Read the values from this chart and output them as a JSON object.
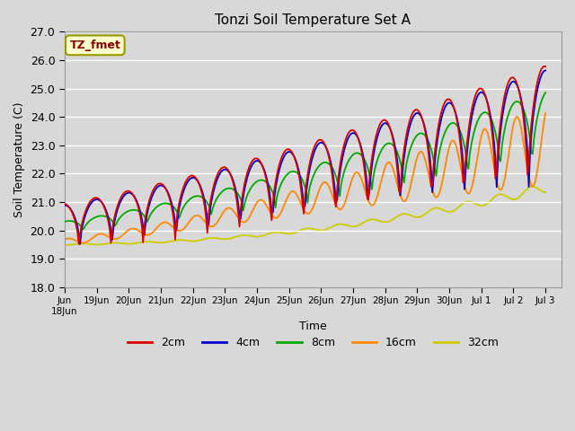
{
  "title": "Tonzi Soil Temperature Set A",
  "xlabel": "Time",
  "ylabel": "Soil Temperature (C)",
  "ylim": [
    18.0,
    27.0
  ],
  "yticks": [
    18.0,
    19.0,
    20.0,
    21.0,
    22.0,
    23.0,
    24.0,
    25.0,
    26.0,
    27.0
  ],
  "bg_color": "#d8d8d8",
  "plot_bg_color": "#d8d8d8",
  "grid_color": "#ffffff",
  "legend_entries": [
    "2cm",
    "4cm",
    "8cm",
    "16cm",
    "32cm"
  ],
  "legend_colors": [
    "#dd0000",
    "#0000cc",
    "#00aa00",
    "#ff8800",
    "#cccc00"
  ],
  "annotation_text": "TZ_fmet",
  "annotation_bg": "#ffffcc",
  "annotation_border": "#999900",
  "annotation_text_color": "#880000",
  "tick_labels": [
    "Jun",
    "18Jun",
    "19Jun",
    "20Jun",
    "21Jun",
    "22Jun",
    "23Jun",
    "24Jun",
    "25Jun",
    "26Jun",
    "27Jun",
    "28Jun",
    "29Jun",
    "30",
    "Jul 1",
    "Jul 2",
    "Jul 3"
  ]
}
